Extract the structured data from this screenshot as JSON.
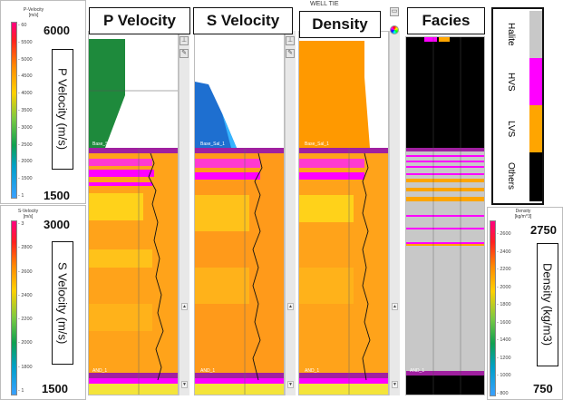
{
  "p_velocity": {
    "title": "P Velocity",
    "scale_header": "P-Velocity\n[m/s]",
    "max_label": "6000",
    "min_label": "1500",
    "axis_label": "P Velocity (m/s)",
    "ticks": [
      "60",
      "5500",
      "5000",
      "4500",
      "4000",
      "3500",
      "3000",
      "2500",
      "2000",
      "1500",
      "1"
    ]
  },
  "s_velocity": {
    "title": "S Velocity",
    "scale_header": "S-Velocity\n[m/s]",
    "max_label": "3000",
    "min_label": "1500",
    "axis_label": "S Velocity (m/s)",
    "ticks": [
      "3",
      "2800",
      "2600",
      "2400",
      "2200",
      "2000",
      "1800",
      "1"
    ]
  },
  "density": {
    "title": "Density",
    "tab_label": "WELL TIE",
    "scale_header": "Density\n[kg/m^3]",
    "max_label": "2750",
    "min_label": "750",
    "axis_label": "Density (kg/m3)",
    "ticks": [
      "2600",
      "2400",
      "2200",
      "2000",
      "1800",
      "1600",
      "1400",
      "1200",
      "1000",
      "800"
    ]
  },
  "facies": {
    "title": "Facies",
    "legend": [
      "Halite",
      "HVS",
      "LVS",
      "Others"
    ]
  },
  "markers": {
    "top": "Base_Sal_1",
    "bottom": "AND_1"
  },
  "colors": {
    "halite": "#c8c8c8",
    "hvs": "#ff00ff",
    "lvs": "#ffa500",
    "others": "#000000",
    "green_fill": "#1e8a3c",
    "blue_fill": "#1e6fd0",
    "orange_fill": "#ff9900",
    "magenta_band": "#a020a0"
  }
}
